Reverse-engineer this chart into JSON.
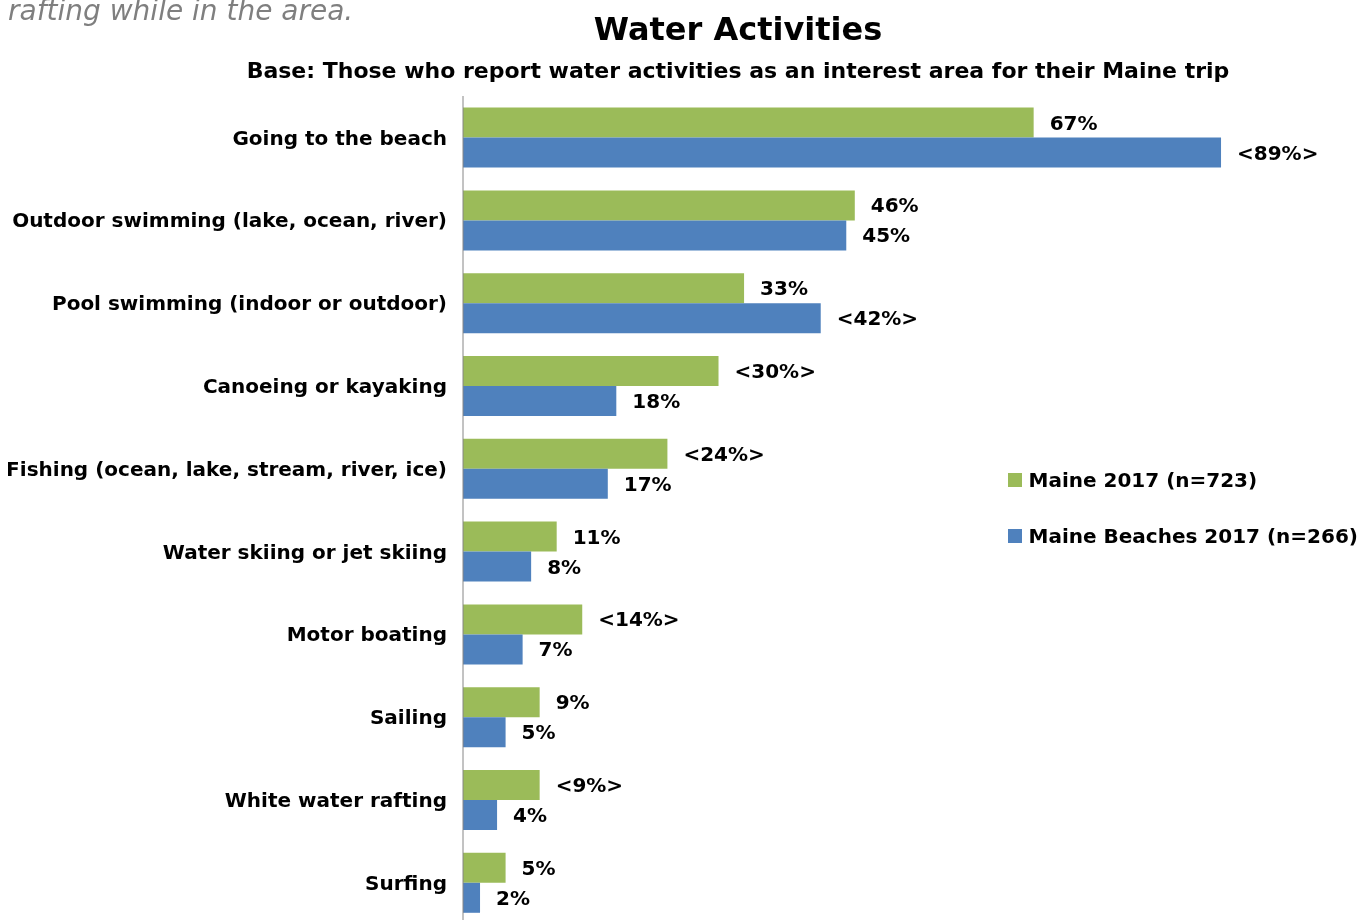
{
  "chart_data": {
    "type": "bar",
    "orientation": "horizontal",
    "title": "Water Activities",
    "subtitle": "Base: Those who report water activities as an interest area for their Maine trip",
    "annotations": [
      "rafting while in the area."
    ],
    "categories": [
      "Going to the beach",
      "Outdoor swimming (lake, ocean, river)",
      "Pool swimming (indoor or outdoor)",
      "Canoeing or kayaking",
      "Fishing (ocean, lake, stream, river, ice)",
      "Water skiing or jet skiing",
      "Motor boating",
      "Sailing",
      "White water rafting",
      "Surfing"
    ],
    "series": [
      {
        "name": "Maine 2017 (n=723)",
        "color": "#9bbb59",
        "values": [
          67,
          46,
          33,
          30,
          24,
          11,
          14,
          9,
          9,
          5
        ],
        "value_labels": [
          "67%",
          "46%",
          "33%",
          "<30%>",
          "<24%>",
          "11%",
          "<14%>",
          "9%",
          "<9%>",
          "5%"
        ]
      },
      {
        "name": "Maine Beaches 2017 (n=266)",
        "color": "#4f81bd",
        "values": [
          89,
          45,
          42,
          18,
          17,
          8,
          7,
          5,
          4,
          2
        ],
        "value_labels": [
          "<89%>",
          "45%",
          "<42%>",
          "18%",
          "17%",
          "8%",
          "7%",
          "5%",
          "4%",
          "2%"
        ]
      }
    ],
    "legend": "right"
  }
}
